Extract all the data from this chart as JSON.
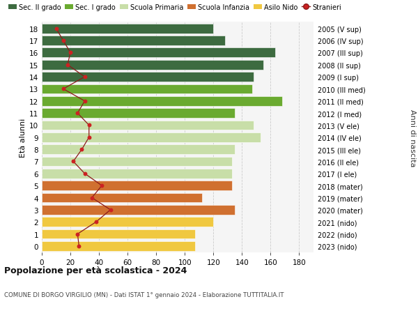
{
  "ages": [
    18,
    17,
    16,
    15,
    14,
    13,
    12,
    11,
    10,
    9,
    8,
    7,
    6,
    5,
    4,
    3,
    2,
    1,
    0
  ],
  "years": [
    "2005 (V sup)",
    "2006 (IV sup)",
    "2007 (III sup)",
    "2008 (II sup)",
    "2009 (I sup)",
    "2010 (III med)",
    "2011 (II med)",
    "2012 (I med)",
    "2013 (V ele)",
    "2014 (IV ele)",
    "2015 (III ele)",
    "2016 (II ele)",
    "2017 (I ele)",
    "2018 (mater)",
    "2019 (mater)",
    "2020 (mater)",
    "2021 (nido)",
    "2022 (nido)",
    "2023 (nido)"
  ],
  "bar_values": [
    120,
    128,
    163,
    155,
    148,
    147,
    168,
    135,
    148,
    153,
    135,
    133,
    133,
    133,
    112,
    135,
    120,
    107,
    107
  ],
  "bar_colors": [
    "#3d6b40",
    "#3d6b40",
    "#3d6b40",
    "#3d6b40",
    "#3d6b40",
    "#6aaa30",
    "#6aaa30",
    "#6aaa30",
    "#c8dea8",
    "#c8dea8",
    "#c8dea8",
    "#c8dea8",
    "#c8dea8",
    "#d07030",
    "#d07030",
    "#d07030",
    "#f0c840",
    "#f0c840",
    "#f0c840"
  ],
  "stranieri_values": [
    10,
    15,
    20,
    18,
    30,
    15,
    30,
    25,
    33,
    33,
    28,
    22,
    30,
    42,
    35,
    48,
    38,
    25,
    26
  ],
  "ylabel_left": "Età alunni",
  "ylabel_right": "Anni di nascita",
  "xlim": [
    0,
    190
  ],
  "xticks": [
    0,
    20,
    40,
    60,
    80,
    100,
    120,
    140,
    160,
    180
  ],
  "title": "Popolazione per età scolastica - 2024",
  "subtitle": "COMUNE DI BORGO VIRGILIO (MN) - Dati ISTAT 1° gennaio 2024 - Elaborazione TUTTITALIA.IT",
  "legend_labels": [
    "Sec. II grado",
    "Sec. I grado",
    "Scuola Primaria",
    "Scuola Infanzia",
    "Asilo Nido",
    "Stranieri"
  ],
  "legend_colors": [
    "#3d6b40",
    "#6aaa30",
    "#c8dea8",
    "#d07030",
    "#f0c840",
    "#cc2222"
  ],
  "bg_color": "#ffffff",
  "plot_bg": "#f5f5f5",
  "grid_color": "#cccccc",
  "line_color": "#8b1a1a",
  "dot_color": "#cc2222"
}
